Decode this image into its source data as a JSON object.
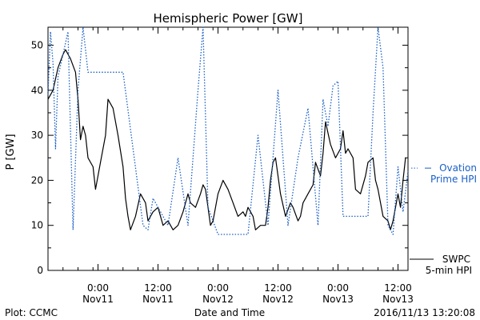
{
  "chart_data": {
    "type": "line",
    "title": "Hemispheric Power [GW]",
    "ylabel": "P [GW]",
    "xlabel": "Date and Time",
    "ylim": [
      0,
      54
    ],
    "yticks": [
      0,
      10,
      20,
      30,
      40,
      50
    ],
    "xlim": [
      "2016-11-10T14:00",
      "2016-11-13T14:00"
    ],
    "xticks": [
      {
        "t": "2016-11-11T00:00",
        "line1": "0:00",
        "line2": "Nov11"
      },
      {
        "t": "2016-11-11T12:00",
        "line1": "12:00",
        "line2": "Nov11"
      },
      {
        "t": "2016-11-12T00:00",
        "line1": "0:00",
        "line2": "Nov12"
      },
      {
        "t": "2016-11-12T12:00",
        "line1": "12:00",
        "line2": "Nov12"
      },
      {
        "t": "2016-11-13T00:00",
        "line1": "0:00",
        "line2": "Nov13"
      },
      {
        "t": "2016-11-13T12:00",
        "line1": "12:00",
        "line2": "Nov13"
      }
    ],
    "grid": false,
    "series": [
      {
        "name": "SWPC 5-min HPI",
        "legend_lines": [
          "SWPC",
          "5-min HPI"
        ],
        "style": "solid",
        "color": "#000000",
        "points": [
          [
            "2016-11-10T14:00",
            38
          ],
          [
            "2016-11-10T15:00",
            40
          ],
          [
            "2016-11-10T16:00",
            45
          ],
          [
            "2016-11-10T17:00",
            48
          ],
          [
            "2016-11-10T17:30",
            49
          ],
          [
            "2016-11-10T18:30",
            47
          ],
          [
            "2016-11-10T19:30",
            44
          ],
          [
            "2016-11-10T20:00",
            38
          ],
          [
            "2016-11-10T20:30",
            29
          ],
          [
            "2016-11-10T21:00",
            32
          ],
          [
            "2016-11-10T21:30",
            30
          ],
          [
            "2016-11-10T22:00",
            25
          ],
          [
            "2016-11-10T23:00",
            23
          ],
          [
            "2016-11-10T23:30",
            18
          ],
          [
            "2016-11-11T00:30",
            24
          ],
          [
            "2016-11-11T01:30",
            30
          ],
          [
            "2016-11-11T02:00",
            38
          ],
          [
            "2016-11-11T03:00",
            36
          ],
          [
            "2016-11-11T04:00",
            30
          ],
          [
            "2016-11-11T05:00",
            23
          ],
          [
            "2016-11-11T05:30",
            16
          ],
          [
            "2016-11-11T06:00",
            12
          ],
          [
            "2016-11-11T06:30",
            9
          ],
          [
            "2016-11-11T07:30",
            12
          ],
          [
            "2016-11-11T08:30",
            17
          ],
          [
            "2016-11-11T09:30",
            15
          ],
          [
            "2016-11-11T10:00",
            11
          ],
          [
            "2016-11-11T11:00",
            13
          ],
          [
            "2016-11-11T12:00",
            14
          ],
          [
            "2016-11-11T13:00",
            10
          ],
          [
            "2016-11-11T14:00",
            11
          ],
          [
            "2016-11-11T15:00",
            9
          ],
          [
            "2016-11-11T16:00",
            10
          ],
          [
            "2016-11-11T17:00",
            13
          ],
          [
            "2016-11-11T18:00",
            17
          ],
          [
            "2016-11-11T18:30",
            15
          ],
          [
            "2016-11-11T19:30",
            14
          ],
          [
            "2016-11-11T20:30",
            17
          ],
          [
            "2016-11-11T21:00",
            19
          ],
          [
            "2016-11-11T21:30",
            18
          ],
          [
            "2016-11-11T22:00",
            14
          ],
          [
            "2016-11-11T22:30",
            10
          ],
          [
            "2016-11-11T23:00",
            11
          ],
          [
            "2016-11-12T00:00",
            17
          ],
          [
            "2016-11-12T01:00",
            20
          ],
          [
            "2016-11-12T02:00",
            18
          ],
          [
            "2016-11-12T03:00",
            15
          ],
          [
            "2016-11-12T04:00",
            12
          ],
          [
            "2016-11-12T05:00",
            13
          ],
          [
            "2016-11-12T05:30",
            12
          ],
          [
            "2016-11-12T06:00",
            14
          ],
          [
            "2016-11-12T07:00",
            12
          ],
          [
            "2016-11-12T07:30",
            9
          ],
          [
            "2016-11-12T08:30",
            10
          ],
          [
            "2016-11-12T09:30",
            10
          ],
          [
            "2016-11-12T10:00",
            14
          ],
          [
            "2016-11-12T10:30",
            20
          ],
          [
            "2016-11-12T11:00",
            24
          ],
          [
            "2016-11-12T11:30",
            25
          ],
          [
            "2016-11-12T12:00",
            21
          ],
          [
            "2016-11-12T12:30",
            17
          ],
          [
            "2016-11-12T13:30",
            12
          ],
          [
            "2016-11-12T14:30",
            15
          ],
          [
            "2016-11-12T15:00",
            14
          ],
          [
            "2016-11-12T16:00",
            11
          ],
          [
            "2016-11-12T16:30",
            12
          ],
          [
            "2016-11-12T17:00",
            15
          ],
          [
            "2016-11-12T18:00",
            17
          ],
          [
            "2016-11-12T19:00",
            19
          ],
          [
            "2016-11-12T19:30",
            24
          ],
          [
            "2016-11-12T20:30",
            21
          ],
          [
            "2016-11-12T21:00",
            26
          ],
          [
            "2016-11-12T21:30",
            33
          ],
          [
            "2016-11-12T22:30",
            28
          ],
          [
            "2016-11-12T23:30",
            25
          ],
          [
            "2016-11-13T00:30",
            27
          ],
          [
            "2016-11-13T01:00",
            31
          ],
          [
            "2016-11-13T01:30",
            26
          ],
          [
            "2016-11-13T02:00",
            27
          ],
          [
            "2016-11-13T03:00",
            25
          ],
          [
            "2016-11-13T03:30",
            18
          ],
          [
            "2016-11-13T04:30",
            17
          ],
          [
            "2016-11-13T05:30",
            21
          ],
          [
            "2016-11-13T06:00",
            24
          ],
          [
            "2016-11-13T07:00",
            25
          ],
          [
            "2016-11-13T07:30",
            20
          ],
          [
            "2016-11-13T08:00",
            18
          ],
          [
            "2016-11-13T09:00",
            12
          ],
          [
            "2016-11-13T10:00",
            11
          ],
          [
            "2016-11-13T10:30",
            9
          ],
          [
            "2016-11-13T11:00",
            11
          ],
          [
            "2016-11-13T12:00",
            17
          ],
          [
            "2016-11-13T12:30",
            14
          ],
          [
            "2016-11-13T13:00",
            20
          ],
          [
            "2016-11-13T13:30",
            25
          ]
        ]
      },
      {
        "name": "Ovation Prime HPI",
        "legend_lines": [
          "Ovation",
          "Prime HPI"
        ],
        "style": "dotted",
        "color": "#1a5fc8",
        "points": [
          [
            "2016-11-10T14:00",
            39
          ],
          [
            "2016-11-10T14:30",
            53
          ],
          [
            "2016-11-10T15:00",
            46
          ],
          [
            "2016-11-10T15:30",
            27
          ],
          [
            "2016-11-10T16:00",
            43
          ],
          [
            "2016-11-10T17:00",
            48
          ],
          [
            "2016-11-10T18:00",
            53
          ],
          [
            "2016-11-10T19:00",
            9
          ],
          [
            "2016-11-10T20:00",
            40
          ],
          [
            "2016-11-10T21:00",
            54
          ],
          [
            "2016-11-10T22:00",
            44
          ],
          [
            "2016-11-11T05:00",
            44
          ],
          [
            "2016-11-11T09:00",
            10
          ],
          [
            "2016-11-11T10:00",
            9
          ],
          [
            "2016-11-11T11:00",
            16
          ],
          [
            "2016-11-11T14:00",
            10
          ],
          [
            "2016-11-11T16:00",
            25
          ],
          [
            "2016-11-11T18:00",
            10
          ],
          [
            "2016-11-11T20:00",
            40
          ],
          [
            "2016-11-11T21:00",
            54
          ],
          [
            "2016-11-11T22:00",
            14
          ],
          [
            "2016-11-12T00:00",
            8
          ],
          [
            "2016-11-12T06:00",
            8
          ],
          [
            "2016-11-12T08:00",
            30
          ],
          [
            "2016-11-12T10:00",
            10
          ],
          [
            "2016-11-12T12:00",
            40
          ],
          [
            "2016-11-12T14:00",
            10
          ],
          [
            "2016-11-12T16:00",
            25
          ],
          [
            "2016-11-12T18:00",
            36
          ],
          [
            "2016-11-12T20:00",
            10
          ],
          [
            "2016-11-12T21:00",
            38
          ],
          [
            "2016-11-12T22:00",
            32
          ],
          [
            "2016-11-12T23:00",
            41
          ],
          [
            "2016-11-13T00:00",
            42
          ],
          [
            "2016-11-13T01:00",
            12
          ],
          [
            "2016-11-13T06:00",
            12
          ],
          [
            "2016-11-13T07:00",
            35
          ],
          [
            "2016-11-13T08:00",
            54
          ],
          [
            "2016-11-13T09:00",
            45
          ],
          [
            "2016-11-13T10:00",
            10
          ],
          [
            "2016-11-13T11:00",
            8
          ],
          [
            "2016-11-13T12:00",
            23
          ],
          [
            "2016-11-13T13:00",
            13
          ],
          [
            "2016-11-13T14:00",
            22
          ]
        ]
      }
    ]
  },
  "footer": {
    "plot_credit": "Plot: CCMC",
    "timestamp": "2016/11/13 13:20:08"
  }
}
